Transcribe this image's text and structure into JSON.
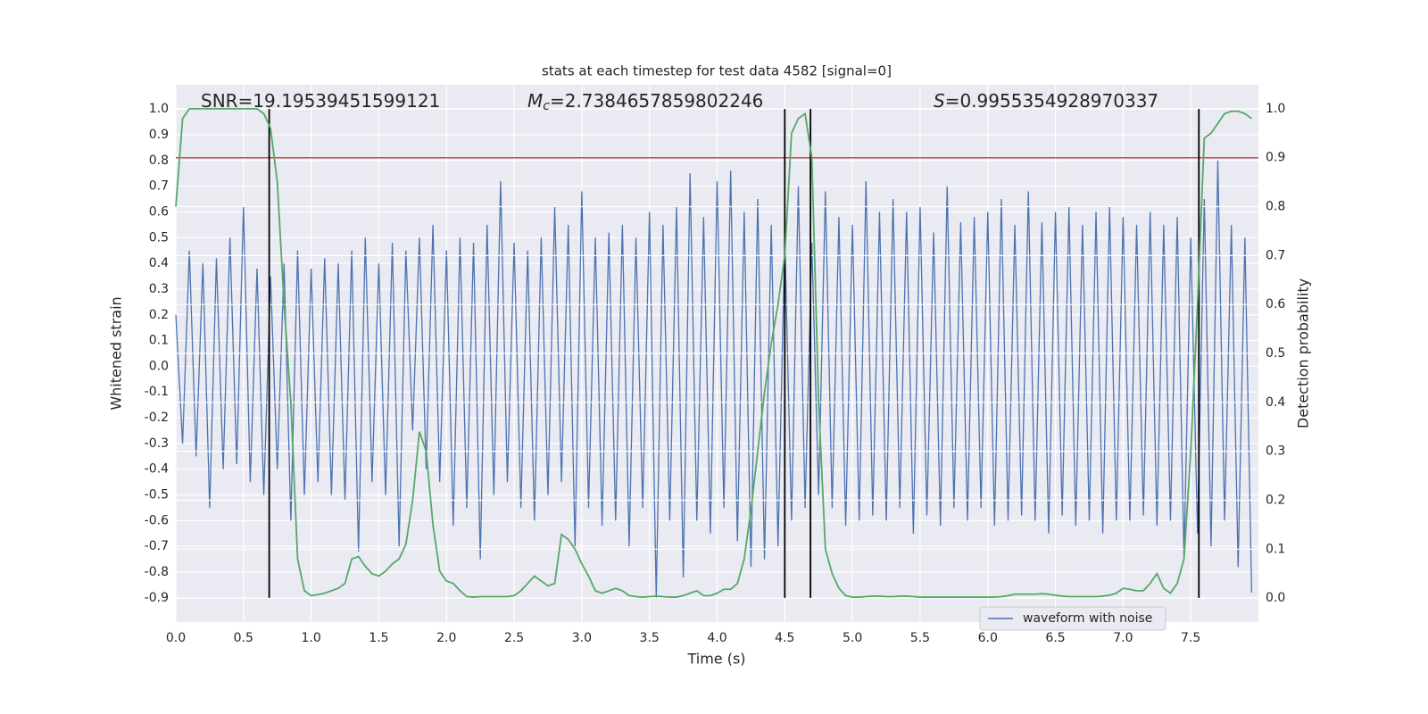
{
  "chart_data": {
    "type": "line",
    "title": "stats at each timestep for test data 4582 [signal=0]",
    "x_label": "Time (s)",
    "y_label": "Whitened strain",
    "y2_label": "Detection probability",
    "annotations": [
      {
        "text": "SNR=19.19539451599121"
      },
      {
        "symbol": "M",
        "subscript": "c",
        "text": "=2.7384657859802246"
      },
      {
        "symbol": "S",
        "text": "=0.9955354928970337"
      }
    ],
    "xlim": [
      0,
      8
    ],
    "ylim": [
      -0.994,
      1.094
    ],
    "y2lim": [
      -0.049,
      1.049
    ],
    "xticks": [
      {
        "value": 0,
        "label": "0.0"
      },
      0.5,
      {
        "value": 1,
        "label": "1.0"
      },
      1.5,
      {
        "value": 2,
        "label": "2.0"
      },
      2.5,
      {
        "value": 3,
        "label": "3.0"
      },
      3.5,
      {
        "value": 4,
        "label": "4.0"
      },
      4.5,
      {
        "value": 5,
        "label": "5.0"
      },
      5.5,
      {
        "value": 6,
        "label": "6.0"
      },
      6.5,
      {
        "value": 7,
        "label": "7.0"
      },
      7.5
    ],
    "yticks": [
      -0.9,
      -0.8,
      -0.7,
      -0.6,
      -0.5,
      -0.4,
      -0.3,
      -0.2,
      -0.1,
      {
        "value": 0,
        "label": "0.0"
      },
      0.1,
      0.2,
      0.3,
      0.4,
      0.5,
      0.6,
      0.7,
      0.8,
      0.9,
      {
        "value": 1,
        "label": "1.0"
      }
    ],
    "y2ticks": [
      {
        "value": 0,
        "label": "0.0"
      },
      0.1,
      0.2,
      0.3,
      0.4,
      0.5,
      0.6,
      0.7,
      0.8,
      0.9,
      {
        "value": 1,
        "label": "1.0"
      }
    ],
    "grid": true,
    "legend": "lower right",
    "x": [
      0,
      0.05,
      0.1,
      0.15,
      0.2,
      0.25,
      0.3,
      0.35,
      0.4,
      0.45,
      0.5,
      0.55,
      0.6,
      0.65,
      0.7,
      0.75,
      0.8,
      0.85,
      0.9,
      0.95,
      1,
      1.05,
      1.1,
      1.15,
      1.2,
      1.25,
      1.3,
      1.35,
      1.4,
      1.45,
      1.5,
      1.55,
      1.6,
      1.65,
      1.7,
      1.75,
      1.8,
      1.85,
      1.9,
      1.95,
      2,
      2.05,
      2.1,
      2.15,
      2.2,
      2.25,
      2.3,
      2.35,
      2.4,
      2.45,
      2.5,
      2.55,
      2.6,
      2.65,
      2.7,
      2.75,
      2.8,
      2.85,
      2.9,
      2.95,
      3,
      3.05,
      3.1,
      3.15,
      3.2,
      3.25,
      3.3,
      3.35,
      3.4,
      3.45,
      3.5,
      3.55,
      3.6,
      3.65,
      3.7,
      3.75,
      3.8,
      3.85,
      3.9,
      3.95,
      4,
      4.05,
      4.1,
      4.15,
      4.2,
      4.25,
      4.3,
      4.35,
      4.4,
      4.45,
      4.5,
      4.55,
      4.6,
      4.65,
      4.7,
      4.75,
      4.8,
      4.85,
      4.9,
      4.95,
      5,
      5.05,
      5.1,
      5.15,
      5.2,
      5.25,
      5.3,
      5.35,
      5.4,
      5.45,
      5.5,
      5.55,
      5.6,
      5.65,
      5.7,
      5.75,
      5.8,
      5.85,
      5.9,
      5.95,
      6,
      6.05,
      6.1,
      6.15,
      6.2,
      6.25,
      6.3,
      6.35,
      6.4,
      6.45,
      6.5,
      6.55,
      6.6,
      6.65,
      6.7,
      6.75,
      6.8,
      6.85,
      6.9,
      6.95,
      7,
      7.05,
      7.1,
      7.15,
      7.2,
      7.25,
      7.3,
      7.35,
      7.4,
      7.45,
      7.5,
      7.55,
      7.6,
      7.65,
      7.7,
      7.75,
      7.8,
      7.85,
      7.9,
      7.95
    ],
    "series": [
      {
        "name": "waveform with noise",
        "color": "#4c72b0",
        "values": [
          0.2,
          -0.3,
          0.45,
          -0.35,
          0.4,
          -0.55,
          0.42,
          -0.4,
          0.5,
          -0.38,
          0.62,
          -0.45,
          0.38,
          -0.5,
          0.35,
          -0.4,
          0.4,
          -0.6,
          0.45,
          -0.5,
          0.38,
          -0.45,
          0.42,
          -0.5,
          0.4,
          -0.52,
          0.45,
          -0.72,
          0.5,
          -0.45,
          0.4,
          -0.5,
          0.48,
          -0.7,
          0.45,
          -0.25,
          0.5,
          -0.4,
          0.55,
          -0.45,
          0.45,
          -0.62,
          0.5,
          -0.55,
          0.48,
          -0.75,
          0.55,
          -0.5,
          0.72,
          -0.45,
          0.48,
          -0.55,
          0.45,
          -0.6,
          0.5,
          -0.5,
          0.62,
          -0.45,
          0.55,
          -0.7,
          0.68,
          -0.55,
          0.5,
          -0.62,
          0.52,
          -0.6,
          0.55,
          -0.7,
          0.5,
          -0.55,
          0.6,
          -0.9,
          0.55,
          -0.6,
          0.62,
          -0.82,
          0.75,
          -0.6,
          0.58,
          -0.65,
          0.72,
          -0.55,
          0.76,
          -0.68,
          0.6,
          -0.78,
          0.65,
          -0.75,
          0.55,
          -0.7,
          0.5,
          -0.6,
          0.7,
          -0.55,
          0.48,
          -0.5,
          0.68,
          -0.55,
          0.58,
          -0.62,
          0.55,
          -0.6,
          0.72,
          -0.58,
          0.6,
          -0.6,
          0.65,
          -0.55,
          0.6,
          -0.65,
          0.62,
          -0.58,
          0.52,
          -0.62,
          0.7,
          -0.55,
          0.56,
          -0.6,
          0.58,
          -0.55,
          0.6,
          -0.62,
          0.65,
          -0.6,
          0.55,
          -0.58,
          0.68,
          -0.6,
          0.56,
          -0.65,
          0.6,
          -0.58,
          0.62,
          -0.62,
          0.55,
          -0.6,
          0.6,
          -0.65,
          0.62,
          -0.6,
          0.58,
          -0.6,
          0.55,
          -0.58,
          0.6,
          -0.62,
          0.55,
          -0.6,
          0.58,
          -0.75,
          0.5,
          -0.65,
          0.65,
          -0.7,
          0.8,
          -0.6,
          0.55,
          -0.78,
          0.5,
          -0.88
        ]
      },
      {
        "color": "#55a868",
        "axis": "y2",
        "values": [
          0.8,
          0.98,
          1,
          1,
          1,
          1,
          1,
          1,
          1,
          1,
          1,
          1,
          1,
          0.99,
          0.96,
          0.85,
          0.6,
          0.4,
          0.08,
          0.015,
          0.005,
          0.007,
          0.01,
          0.015,
          0.02,
          0.03,
          0.08,
          0.085,
          0.065,
          0.05,
          0.045,
          0.055,
          0.07,
          0.08,
          0.11,
          0.2,
          0.34,
          0.3,
          0.15,
          0.055,
          0.035,
          0.03,
          0.015,
          0.003,
          0.002,
          0.003,
          0.003,
          0.003,
          0.003,
          0.003,
          0.005,
          0.015,
          0.03,
          0.045,
          0.035,
          0.025,
          0.03,
          0.13,
          0.12,
          0.1,
          0.07,
          0.045,
          0.015,
          0.01,
          0.015,
          0.02,
          0.015,
          0.005,
          0.003,
          0.002,
          0.003,
          0.004,
          0.003,
          0.002,
          0.002,
          0.005,
          0.01,
          0.015,
          0.005,
          0.005,
          0.01,
          0.018,
          0.018,
          0.03,
          0.08,
          0.18,
          0.3,
          0.42,
          0.52,
          0.6,
          0.7,
          0.95,
          0.98,
          0.99,
          0.9,
          0.4,
          0.1,
          0.05,
          0.02,
          0.005,
          0.002,
          0.002,
          0.003,
          0.004,
          0.004,
          0.003,
          0.003,
          0.004,
          0.004,
          0.003,
          0.002,
          0.002,
          0.002,
          0.002,
          0.002,
          0.002,
          0.002,
          0.002,
          0.002,
          0.002,
          0.002,
          0.002,
          0.003,
          0.005,
          0.008,
          0.008,
          0.008,
          0.008,
          0.009,
          0.008,
          0.006,
          0.004,
          0.003,
          0.003,
          0.003,
          0.003,
          0.003,
          0.004,
          0.006,
          0.01,
          0.02,
          0.018,
          0.015,
          0.015,
          0.03,
          0.05,
          0.02,
          0.01,
          0.03,
          0.08,
          0.3,
          0.6,
          0.94,
          0.95,
          0.97,
          0.99,
          0.995,
          0.995,
          0.99,
          0.98
        ]
      }
    ],
    "hline": {
      "axis": "y2",
      "value": 0.9,
      "color": "#c44e52"
    },
    "vlines": {
      "x": [
        0.69,
        4.5,
        4.69,
        7.56
      ],
      "ymin": -0.9,
      "ymax": 1.0,
      "color": "#000000"
    }
  }
}
